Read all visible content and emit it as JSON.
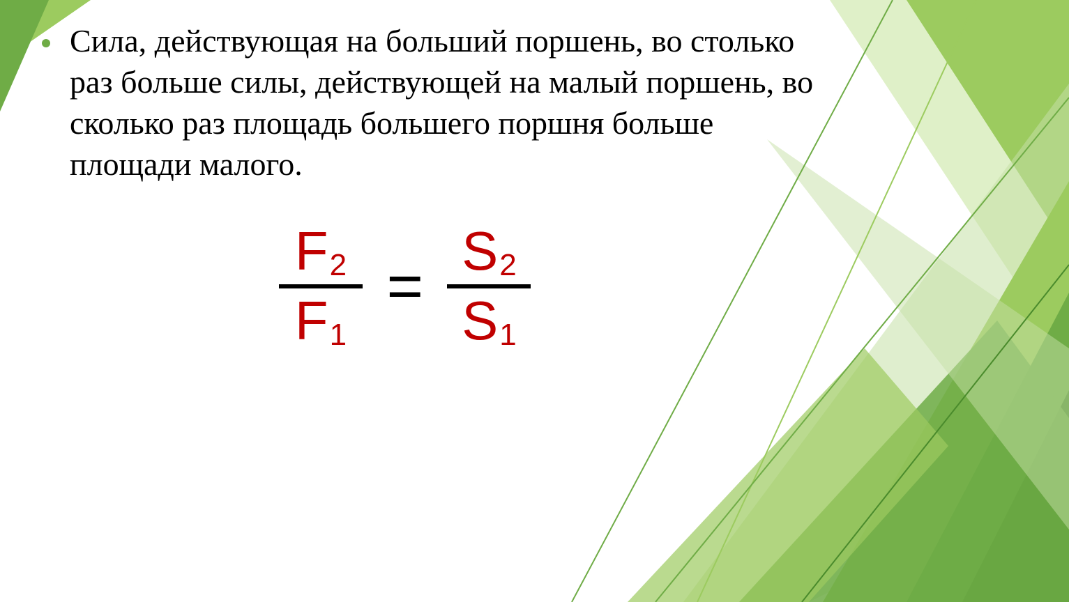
{
  "slide": {
    "bullet_color": "#6fac46",
    "text_color": "#000000",
    "paragraph": "Сила, действующая на больший поршень, во столько раз больше силы, действующей на малый поршень, во сколько раз площадь большего поршня больше площади малого.",
    "paragraph_fontsize": 46,
    "formula": {
      "f2": "F",
      "f2_sub": "2",
      "f1": "F",
      "f1_sub": "1",
      "s2": "S",
      "s2_sub": "2",
      "s1": "S",
      "s1_sub": "1",
      "eq": "=",
      "var_color": "#c00000",
      "bar_color": "#000000",
      "eq_color": "#000000",
      "var_fontsize": 78,
      "sub_fontsize": 44,
      "eq_fontsize": 90
    }
  },
  "decor": {
    "palette": {
      "dark": "#4a8b2c",
      "mid": "#6fac46",
      "light": "#9ccb5f",
      "pale": "#c5e0a5",
      "xlight": "#dff0c8"
    }
  }
}
